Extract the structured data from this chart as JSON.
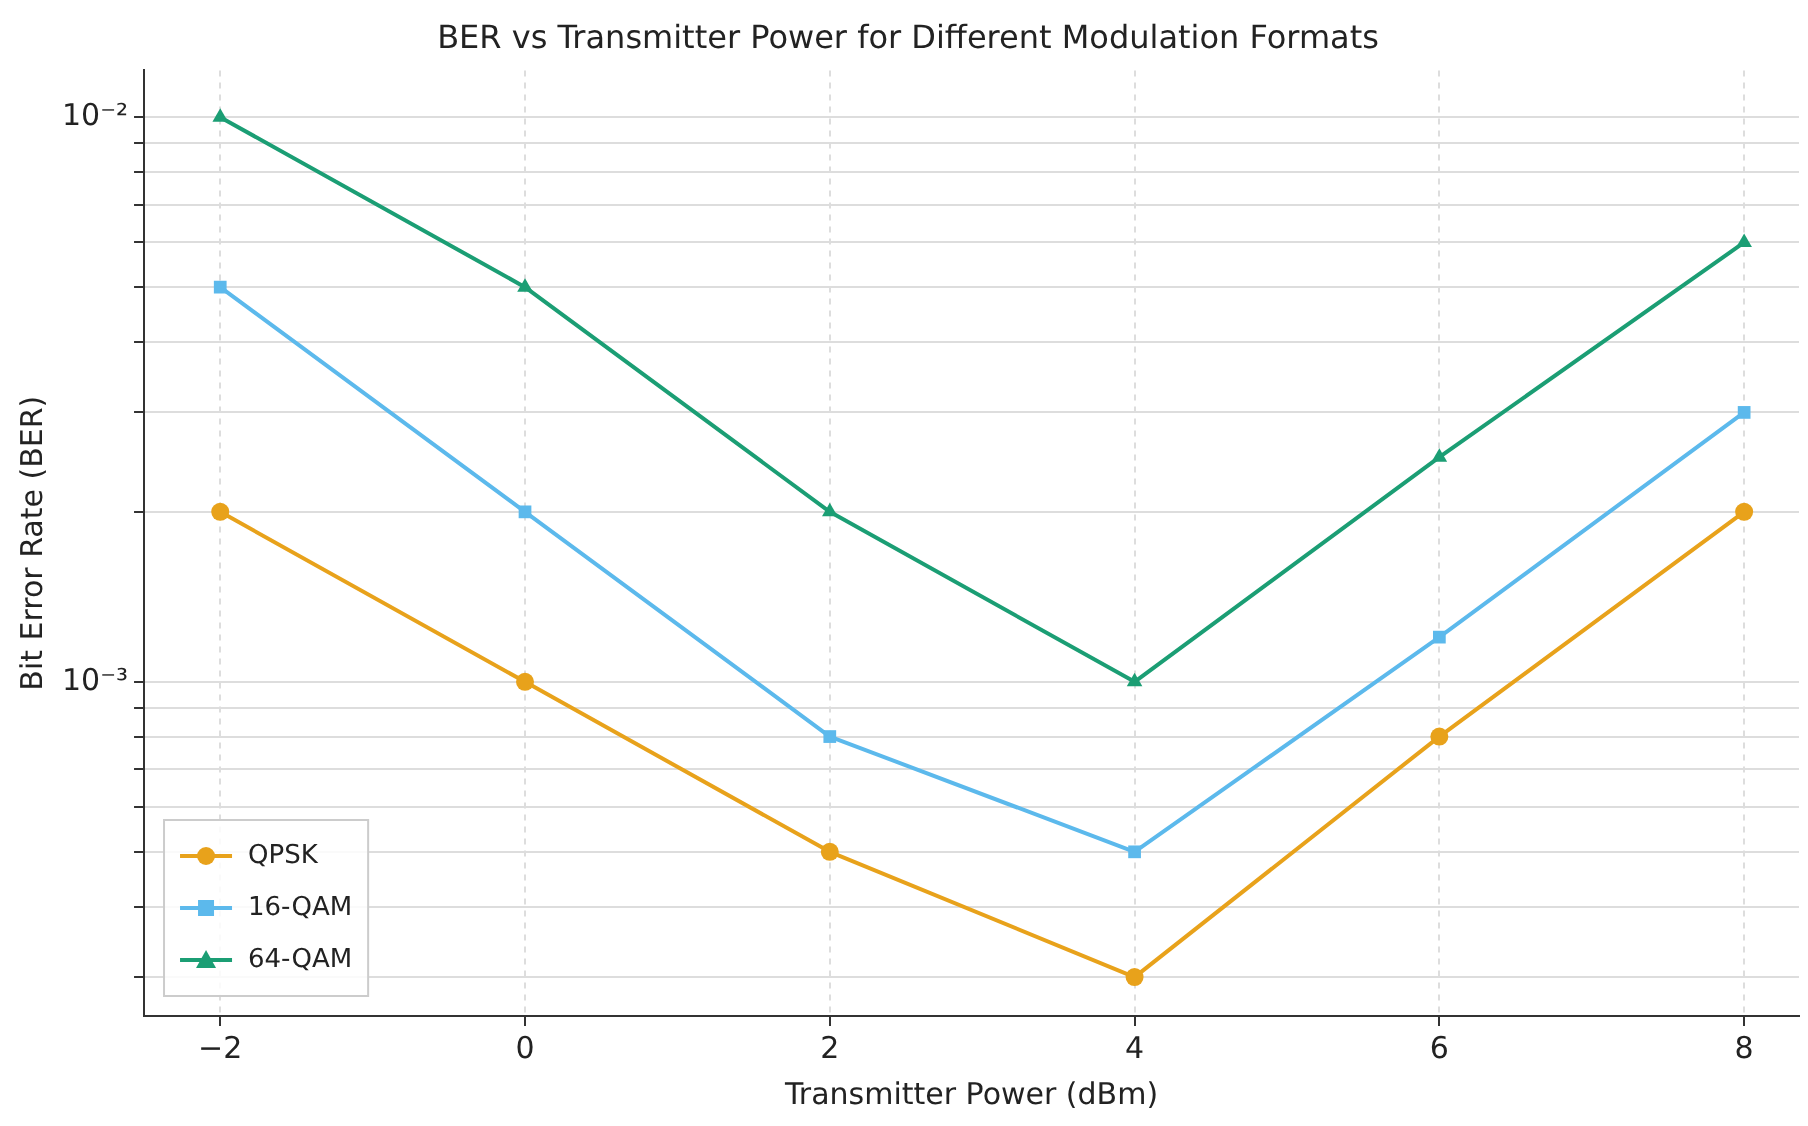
{
  "chart_data": {
    "type": "line",
    "title": "BER vs Transmitter Power for Different Modulation Formats",
    "xlabel": "Transmitter Power (dBm)",
    "ylabel": "Bit Error Rate (BER)",
    "x": [
      -2,
      0,
      2,
      4,
      6,
      8
    ],
    "series": [
      {
        "name": "QPSK",
        "color": "#e8a21b",
        "marker": "circle",
        "values": [
          0.002,
          0.001,
          0.0005,
          0.0003,
          0.0008,
          0.002
        ]
      },
      {
        "name": "16-QAM",
        "color": "#5cb9ec",
        "marker": "square",
        "values": [
          0.005,
          0.002,
          0.0008,
          0.0005,
          0.0012,
          0.003
        ]
      },
      {
        "name": "64-QAM",
        "color": "#1b9e74",
        "marker": "triangle",
        "values": [
          0.01,
          0.005,
          0.002,
          0.001,
          0.0025,
          0.006
        ]
      }
    ],
    "log": "y",
    "xlim": [
      -2.5,
      8.36
    ],
    "xticks": [
      -2,
      0,
      2,
      4,
      6,
      8
    ],
    "ylim": [
      0.000256,
      0.0121
    ],
    "yticks": [
      {
        "value": 0.0003,
        "label": null
      },
      {
        "value": 0.0004,
        "label": null
      },
      {
        "value": 0.0005,
        "label": null
      },
      {
        "value": 0.0006,
        "label": null
      },
      {
        "value": 0.0007,
        "label": null
      },
      {
        "value": 0.0008,
        "label": null
      },
      {
        "value": 0.0009,
        "label": null
      },
      {
        "value": 0.001,
        "label": "10⁻³"
      },
      {
        "value": 0.002,
        "label": null
      },
      {
        "value": 0.003,
        "label": null
      },
      {
        "value": 0.004,
        "label": null
      },
      {
        "value": 0.005,
        "label": null
      },
      {
        "value": 0.006,
        "label": null
      },
      {
        "value": 0.007,
        "label": null
      },
      {
        "value": 0.008,
        "label": null
      },
      {
        "value": 0.009,
        "label": null
      },
      {
        "value": 0.01,
        "label": "10⁻²"
      }
    ],
    "grid": true,
    "legend": "bottom left",
    "line_style": "solid"
  }
}
